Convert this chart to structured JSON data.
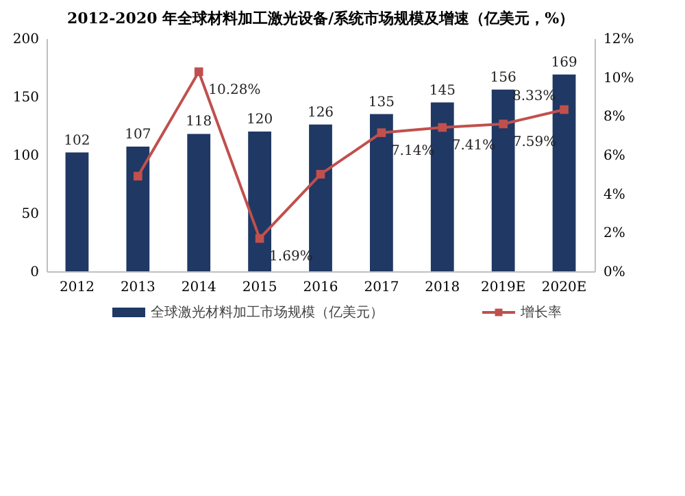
{
  "chart_data": {
    "type": "bar",
    "title": "2012-2020 年全球材料加工激光设备/系统市场规模及增速（亿美元，%）",
    "categories": [
      "2012",
      "2013",
      "2014",
      "2015",
      "2016",
      "2017",
      "2018",
      "2019E",
      "2020E"
    ],
    "series": [
      {
        "name": "全球激光材料加工市场规模（亿美元）",
        "color": "#1f3864",
        "values": [
          102,
          107,
          118,
          120,
          126,
          135,
          145,
          156,
          169
        ]
      },
      {
        "name": "增长率",
        "type": "line",
        "axis": "y2",
        "marker": "square",
        "color": "#c0504d",
        "values": [
          null,
          4.9,
          10.28,
          1.69,
          5.0,
          7.14,
          7.41,
          7.59,
          8.33
        ],
        "value_labels": [
          null,
          null,
          "10.28%",
          "1.69%",
          null,
          "7.14%",
          "7.41%",
          "7.59%",
          "8.33%"
        ]
      }
    ],
    "data_labels": true,
    "ylim": [
      0,
      200
    ],
    "yticks": [
      0,
      50,
      100,
      150,
      200
    ],
    "y2lim": [
      0,
      12
    ],
    "y2ticks": [
      {
        "value": 0,
        "label": "0%"
      },
      {
        "value": 2,
        "label": "2%"
      },
      {
        "value": 4,
        "label": "4%"
      },
      {
        "value": 6,
        "label": "6%"
      },
      {
        "value": 8,
        "label": "8%"
      },
      {
        "value": 10,
        "label": "10%"
      },
      {
        "value": 12,
        "label": "12%"
      }
    ],
    "grid": false,
    "legend": "bottom"
  }
}
